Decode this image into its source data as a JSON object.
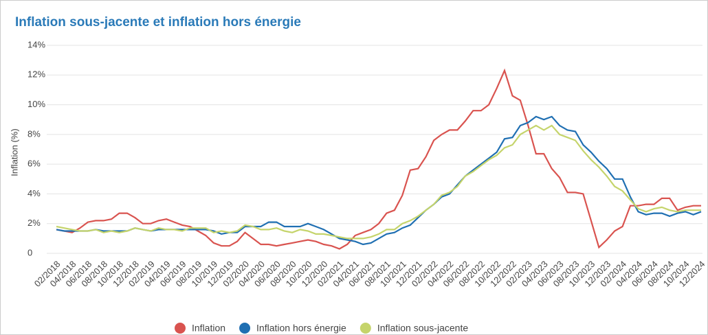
{
  "chart_data": {
    "type": "line",
    "title": "Inflation sous-jacente et inflation hors énergie",
    "y_label": "Inflation (%)",
    "categories": [
      "02/2018",
      null,
      "04/2018",
      null,
      "06/2018",
      null,
      "08/2018",
      null,
      "10/2018",
      null,
      "12/2018",
      null,
      "02/2019",
      null,
      "04/2019",
      null,
      "06/2019",
      null,
      "08/2019",
      null,
      "10/2019",
      null,
      "12/2019",
      null,
      "02/2020",
      null,
      "04/2020",
      null,
      "06/2020",
      null,
      "08/2020",
      null,
      "10/2020",
      null,
      "12/2020",
      null,
      "02/2021",
      null,
      "04/2021",
      null,
      "06/2021",
      null,
      "08/2021",
      null,
      "10/2021",
      null,
      "12/2021",
      null,
      "02/2022",
      null,
      "04/2022",
      null,
      "06/2022",
      null,
      "08/2022",
      null,
      "10/2022",
      null,
      "12/2022",
      null,
      "02/2023",
      null,
      "04/2023",
      null,
      "06/2023",
      null,
      "08/2023",
      null,
      "10/2023",
      null,
      "12/2023",
      null,
      "02/2024",
      null,
      "04/2024",
      null,
      "06/2024",
      null,
      "08/2024",
      null,
      "10/2024",
      null,
      "12/2024"
    ],
    "series": [
      {
        "name": "Inflation",
        "color": "#d9534f",
        "values": [
          1.6,
          1.5,
          1.4,
          1.7,
          2.1,
          2.2,
          2.2,
          2.3,
          2.7,
          2.7,
          2.4,
          2.0,
          2.0,
          2.2,
          2.3,
          2.1,
          1.9,
          1.8,
          1.5,
          1.2,
          0.7,
          0.5,
          0.5,
          0.8,
          1.4,
          1.0,
          0.6,
          0.6,
          0.5,
          0.6,
          0.7,
          0.8,
          0.9,
          0.8,
          0.6,
          0.5,
          0.3,
          0.6,
          1.2,
          1.4,
          1.6,
          2.0,
          2.7,
          2.9,
          3.9,
          5.6,
          5.7,
          6.5,
          7.6,
          8.0,
          8.3,
          8.3,
          8.9,
          9.6,
          9.6,
          10.0,
          11.1,
          12.3,
          10.6,
          10.3,
          8.6,
          6.7,
          6.7,
          5.7,
          5.1,
          4.1,
          4.1,
          4.0,
          2.2,
          0.4,
          0.9,
          1.5,
          1.8,
          3.2,
          3.2,
          3.3,
          3.3,
          3.7,
          3.7,
          2.9,
          3.1,
          3.2,
          3.2
        ]
      },
      {
        "name": "Inflation hors énergie",
        "color": "#1f6fb2",
        "values": [
          1.6,
          1.5,
          1.5,
          1.5,
          1.5,
          1.6,
          1.5,
          1.5,
          1.5,
          1.5,
          1.7,
          1.6,
          1.5,
          1.6,
          1.6,
          1.6,
          1.6,
          1.6,
          1.6,
          1.6,
          1.5,
          1.3,
          1.4,
          1.4,
          1.8,
          1.8,
          1.8,
          2.1,
          2.1,
          1.8,
          1.8,
          1.8,
          2.0,
          1.8,
          1.6,
          1.3,
          1.0,
          0.9,
          0.8,
          0.6,
          0.7,
          1.0,
          1.3,
          1.4,
          1.7,
          1.9,
          2.4,
          2.9,
          3.3,
          3.8,
          4.0,
          4.6,
          5.2,
          5.6,
          6.0,
          6.4,
          6.8,
          7.7,
          7.8,
          8.6,
          8.8,
          9.2,
          9.0,
          9.2,
          8.6,
          8.3,
          8.2,
          7.3,
          6.8,
          6.2,
          5.7,
          5.0,
          5.0,
          3.8,
          2.8,
          2.6,
          2.7,
          2.7,
          2.5,
          2.7,
          2.8,
          2.6,
          2.8
        ]
      },
      {
        "name": "Inflation sous-jacente",
        "color": "#c5d46b",
        "values": [
          1.8,
          1.7,
          1.6,
          1.5,
          1.5,
          1.6,
          1.4,
          1.5,
          1.4,
          1.5,
          1.7,
          1.6,
          1.5,
          1.7,
          1.6,
          1.6,
          1.5,
          1.7,
          1.7,
          1.7,
          1.4,
          1.5,
          1.4,
          1.5,
          1.9,
          1.8,
          1.6,
          1.6,
          1.7,
          1.5,
          1.4,
          1.6,
          1.5,
          1.3,
          1.3,
          1.2,
          1.1,
          1.0,
          1.0,
          1.0,
          1.1,
          1.3,
          1.6,
          1.6,
          2.0,
          2.2,
          2.5,
          2.9,
          3.3,
          3.9,
          4.1,
          4.5,
          5.2,
          5.5,
          5.9,
          6.3,
          6.6,
          7.1,
          7.3,
          8.0,
          8.3,
          8.6,
          8.3,
          8.6,
          8.0,
          7.8,
          7.6,
          6.9,
          6.3,
          5.8,
          5.2,
          4.5,
          4.2,
          3.6,
          3.0,
          2.8,
          3.0,
          3.1,
          2.9,
          2.8,
          2.9,
          2.9,
          2.9
        ]
      }
    ],
    "ylim": [
      0,
      14
    ],
    "yticks": [
      0,
      {
        "value": 2,
        "label": "2%"
      },
      {
        "value": 4,
        "label": "4%"
      },
      {
        "value": 6,
        "label": "6%"
      },
      {
        "value": 8,
        "label": "8%"
      },
      {
        "value": 10,
        "label": "10%"
      },
      {
        "value": 12,
        "label": "12%"
      },
      {
        "value": 14,
        "label": "14%"
      }
    ],
    "grid": true
  }
}
